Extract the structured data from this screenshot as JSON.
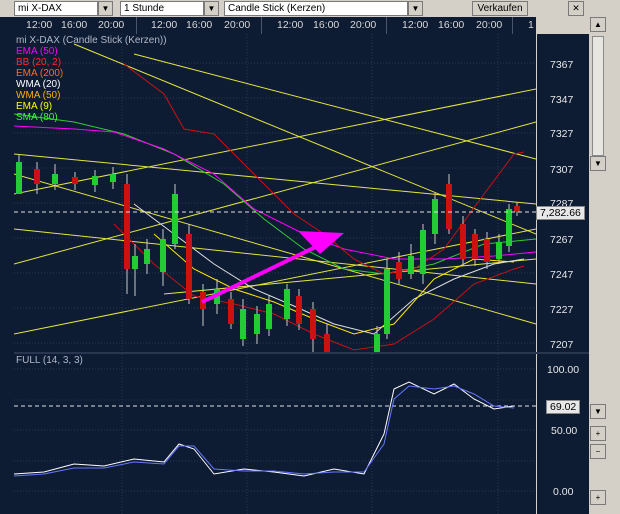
{
  "toolbar": {
    "instrument": "mi X-DAX",
    "interval": "1 Stunde",
    "chart_type": "Candle Stick (Kerzen)",
    "sell_button": "Verkaufen",
    "close_glyph": "✕"
  },
  "time_axis": {
    "labels": [
      "12:00",
      "16:00",
      "20:00",
      "12:00",
      "16:00",
      "20:00",
      "12:00",
      "16:00",
      "20:00",
      "1"
    ]
  },
  "legend": {
    "title": "mi X-DAX (Candle Stick (Kerzen))",
    "items": [
      {
        "label": "EMA (50)",
        "color": "#ff00ff"
      },
      {
        "label": "BB (20, 2)",
        "color": "#ff2a2a"
      },
      {
        "label": "EMA (200)",
        "color": "#ff6a2a"
      },
      {
        "label": "WMA (20)",
        "color": "#ffffff"
      },
      {
        "label": "WMA (50)",
        "color": "#ffb000"
      },
      {
        "label": "EMA (9)",
        "color": "#ffff00"
      },
      {
        "label": "SMA (80)",
        "color": "#33ff33"
      }
    ]
  },
  "price_axis": {
    "labels": [
      "7367",
      "7347",
      "7327",
      "7307",
      "7287",
      "7267",
      "7247",
      "7227",
      "7207"
    ],
    "current_price": "7,282.66"
  },
  "oscillator": {
    "label": "FULL (14, 3, 3)",
    "axis_labels": [
      "100.00",
      "50.00",
      "0.00"
    ],
    "current_value": "69.02"
  },
  "colors": {
    "background": "#0d1b33",
    "bull_candle": "#22cc33",
    "bear_candle": "#cc1111",
    "arrow": "#ff00ff",
    "trendline": "#ffff33"
  },
  "icons": [
    "dropdown-arrow-icon",
    "close-icon",
    "scroll-up-icon",
    "scroll-down-icon",
    "zoom-in-icon",
    "zoom-out-icon"
  ]
}
